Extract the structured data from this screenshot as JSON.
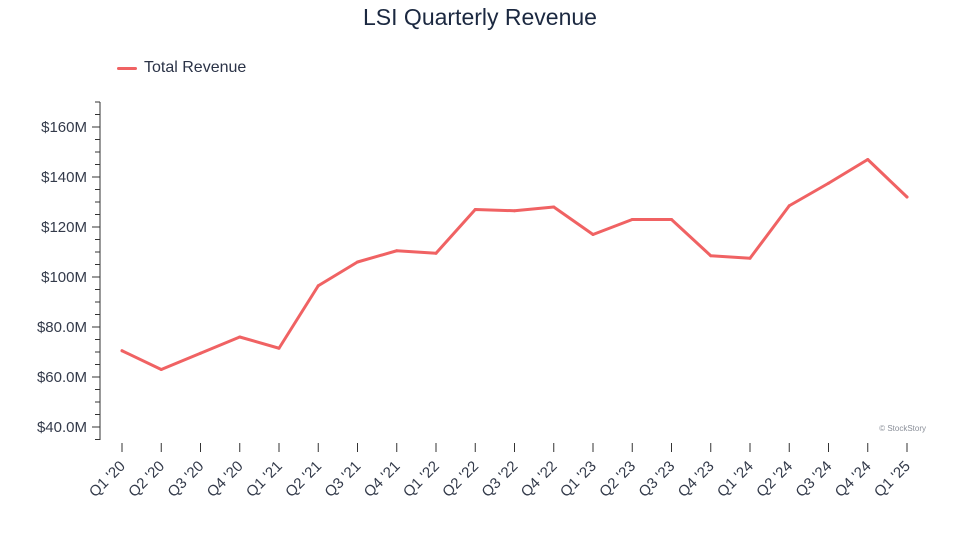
{
  "chart_data": {
    "type": "line",
    "title": "LSI Quarterly Revenue",
    "xlabel": "",
    "ylabel": "",
    "categories": [
      "Q1 '20",
      "Q2 '20",
      "Q3 '20",
      "Q4 '20",
      "Q1 '21",
      "Q2 '21",
      "Q3 '21",
      "Q4 '21",
      "Q1 '22",
      "Q2 '22",
      "Q3 '22",
      "Q4 '22",
      "Q1 '23",
      "Q2 '23",
      "Q3 '23",
      "Q4 '23",
      "Q1 '24",
      "Q2 '24",
      "Q3 '24",
      "Q4 '24",
      "Q1 '25"
    ],
    "series": [
      {
        "name": "Total Revenue",
        "color": "#f06263",
        "values": [
          70.5,
          63.0,
          69.5,
          76.0,
          71.5,
          96.5,
          106.0,
          110.5,
          109.5,
          127.0,
          126.5,
          128.0,
          117.0,
          123.0,
          123.0,
          108.5,
          107.5,
          128.5,
          137.5,
          147.0,
          132.0
        ]
      }
    ],
    "ylim": [
      35,
      171
    ],
    "yticks": [
      40,
      60,
      80,
      100,
      120,
      140,
      160
    ],
    "ytick_labels": [
      "$40.0M",
      "$60.0M",
      "$80.0M",
      "$100M",
      "$120M",
      "$140M",
      "$160M"
    ],
    "legend": "top-left",
    "grid": false,
    "credit": "© StockStory"
  }
}
